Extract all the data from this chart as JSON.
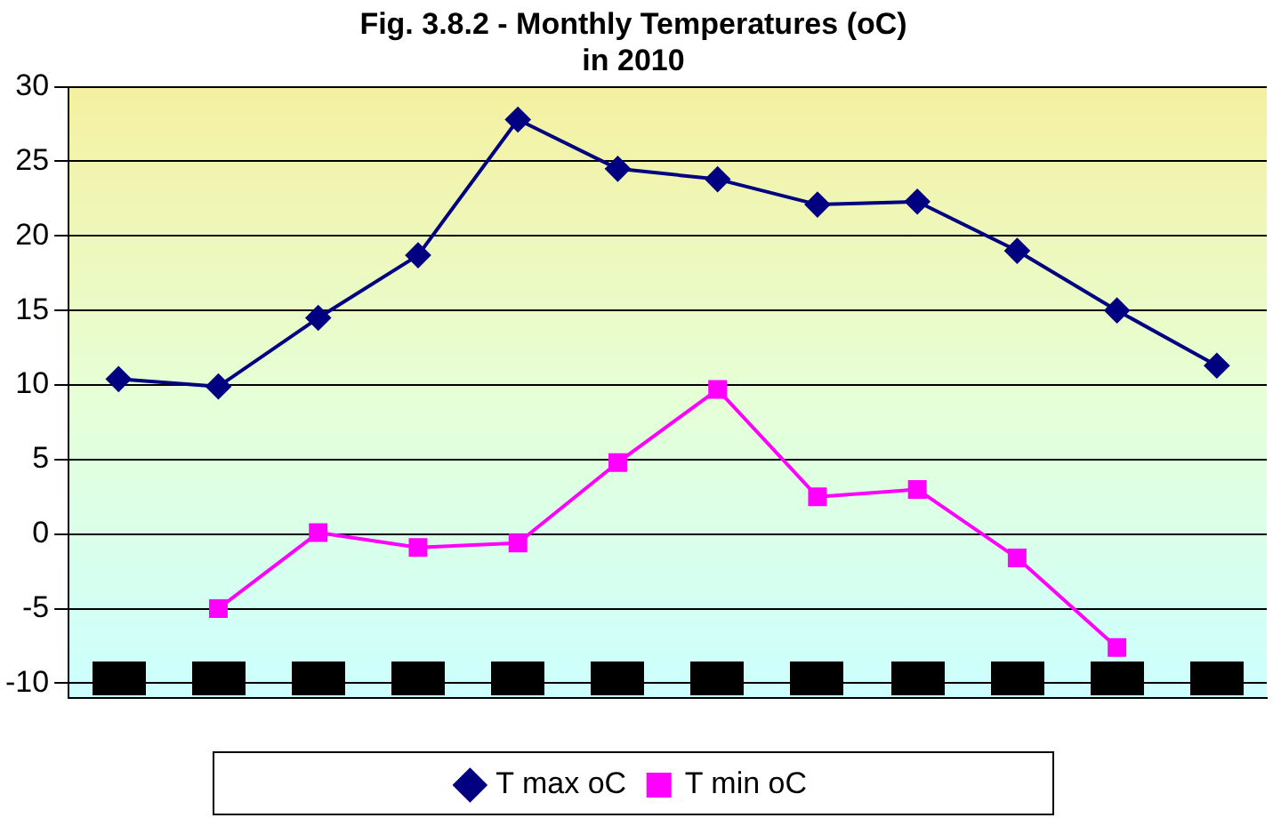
{
  "chart_data": {
    "type": "line",
    "title": "Fig. 3.8.2 - Monthly Temperatures (oC) in 2010",
    "categories": [
      null,
      null,
      null,
      null,
      null,
      null,
      null,
      null,
      null,
      null,
      null,
      null
    ],
    "series": [
      {
        "name": "T max oC",
        "color": "#000080",
        "marker": "diamond",
        "values": [
          10.4,
          9.9,
          14.5,
          18.7,
          27.8,
          24.5,
          23.8,
          22.1,
          22.3,
          19.0,
          15.0,
          11.3
        ]
      },
      {
        "name": "T min oC",
        "color": "#ff00ff",
        "marker": "square",
        "values": [
          null,
          -5.0,
          0.1,
          -0.9,
          -0.6,
          4.8,
          9.7,
          2.5,
          3.0,
          -1.6,
          -7.6,
          null
        ]
      }
    ],
    "ylim": [
      -11,
      30
    ],
    "yticks": [
      -10,
      -5,
      0,
      5,
      10,
      15,
      20,
      25,
      30
    ],
    "grid": "y",
    "legend": "bottom"
  }
}
